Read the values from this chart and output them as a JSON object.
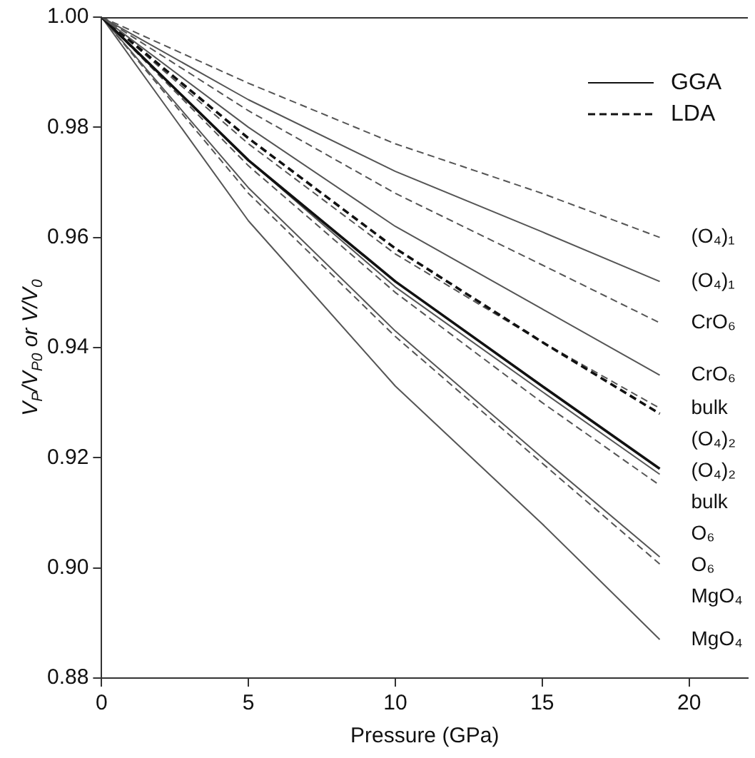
{
  "chart_data": {
    "type": "line",
    "xlabel": "Pressure (GPa)",
    "ylabel": "V$_{P}$/V$_{P0}$ or V/V$_{0}$",
    "x": [
      0,
      5,
      10,
      15,
      19
    ],
    "xlim": [
      0,
      22
    ],
    "xticks": [
      0,
      5,
      10,
      15,
      20
    ],
    "ylim": [
      0.88,
      1.0
    ],
    "yticks": [
      {
        "value": 0.88,
        "label": "0.88"
      },
      {
        "value": 0.9,
        "label": "0.90"
      },
      {
        "value": 0.92,
        "label": "0.92"
      },
      {
        "value": 0.94,
        "label": "0.94"
      },
      {
        "value": 0.96,
        "label": "0.96"
      },
      {
        "value": 0.98,
        "label": "0.98"
      },
      {
        "value": 1.0,
        "label": "1.00"
      }
    ],
    "grid": false,
    "marker": "none",
    "annotations": [
      "GGA",
      "LDA"
    ],
    "series": [
      {
        "name": "(O₄)₁",
        "color": "#555555",
        "line_style": "dashed",
        "values": [
          1.0,
          0.988,
          0.977,
          0.968,
          0.96
        ]
      },
      {
        "name": "(O₄)₁",
        "color": "#555555",
        "line_style": "solid",
        "values": [
          1.0,
          0.985,
          0.972,
          0.961,
          0.952
        ]
      },
      {
        "name": "CrO₆",
        "color": "#555555",
        "line_style": "dashed",
        "values": [
          1.0,
          0.983,
          0.968,
          0.955,
          0.9445
        ]
      },
      {
        "name": "CrO₆",
        "color": "#555555",
        "line_style": "solid",
        "values": [
          1.0,
          0.98,
          0.962,
          0.947,
          0.935
        ]
      },
      {
        "name": "(O₄)₂",
        "color": "#111111",
        "line_style": "dashed",
        "values": [
          1.0,
          0.978,
          0.958,
          0.941,
          0.928
        ]
      },
      {
        "name": "bulk",
        "color": "#555555",
        "line_style": "dashed",
        "values": [
          1.0,
          0.977,
          0.957,
          0.941,
          0.929
        ]
      },
      {
        "name": "(O₄)₂",
        "color": "#111111",
        "line_style": "solid",
        "values": [
          1.0,
          0.974,
          0.952,
          0.933,
          0.918
        ]
      },
      {
        "name": "bulk",
        "color": "#555555",
        "line_style": "solid",
        "values": [
          1.0,
          0.974,
          0.951,
          0.932,
          0.917
        ]
      },
      {
        "name": "O₆",
        "color": "#555555",
        "line_style": "dashed",
        "values": [
          1.0,
          0.973,
          0.95,
          0.93,
          0.915
        ]
      },
      {
        "name": "O₆",
        "color": "#555555",
        "line_style": "solid",
        "values": [
          1.0,
          0.969,
          0.943,
          0.92,
          0.902
        ]
      },
      {
        "name": "MgO₄",
        "color": "#555555",
        "line_style": "dashed",
        "values": [
          1.0,
          0.968,
          0.942,
          0.919,
          0.9007
        ]
      },
      {
        "name": "MgO₄",
        "color": "#555555",
        "line_style": "solid",
        "values": [
          1.0,
          0.963,
          0.933,
          0.908,
          0.887
        ]
      }
    ]
  }
}
